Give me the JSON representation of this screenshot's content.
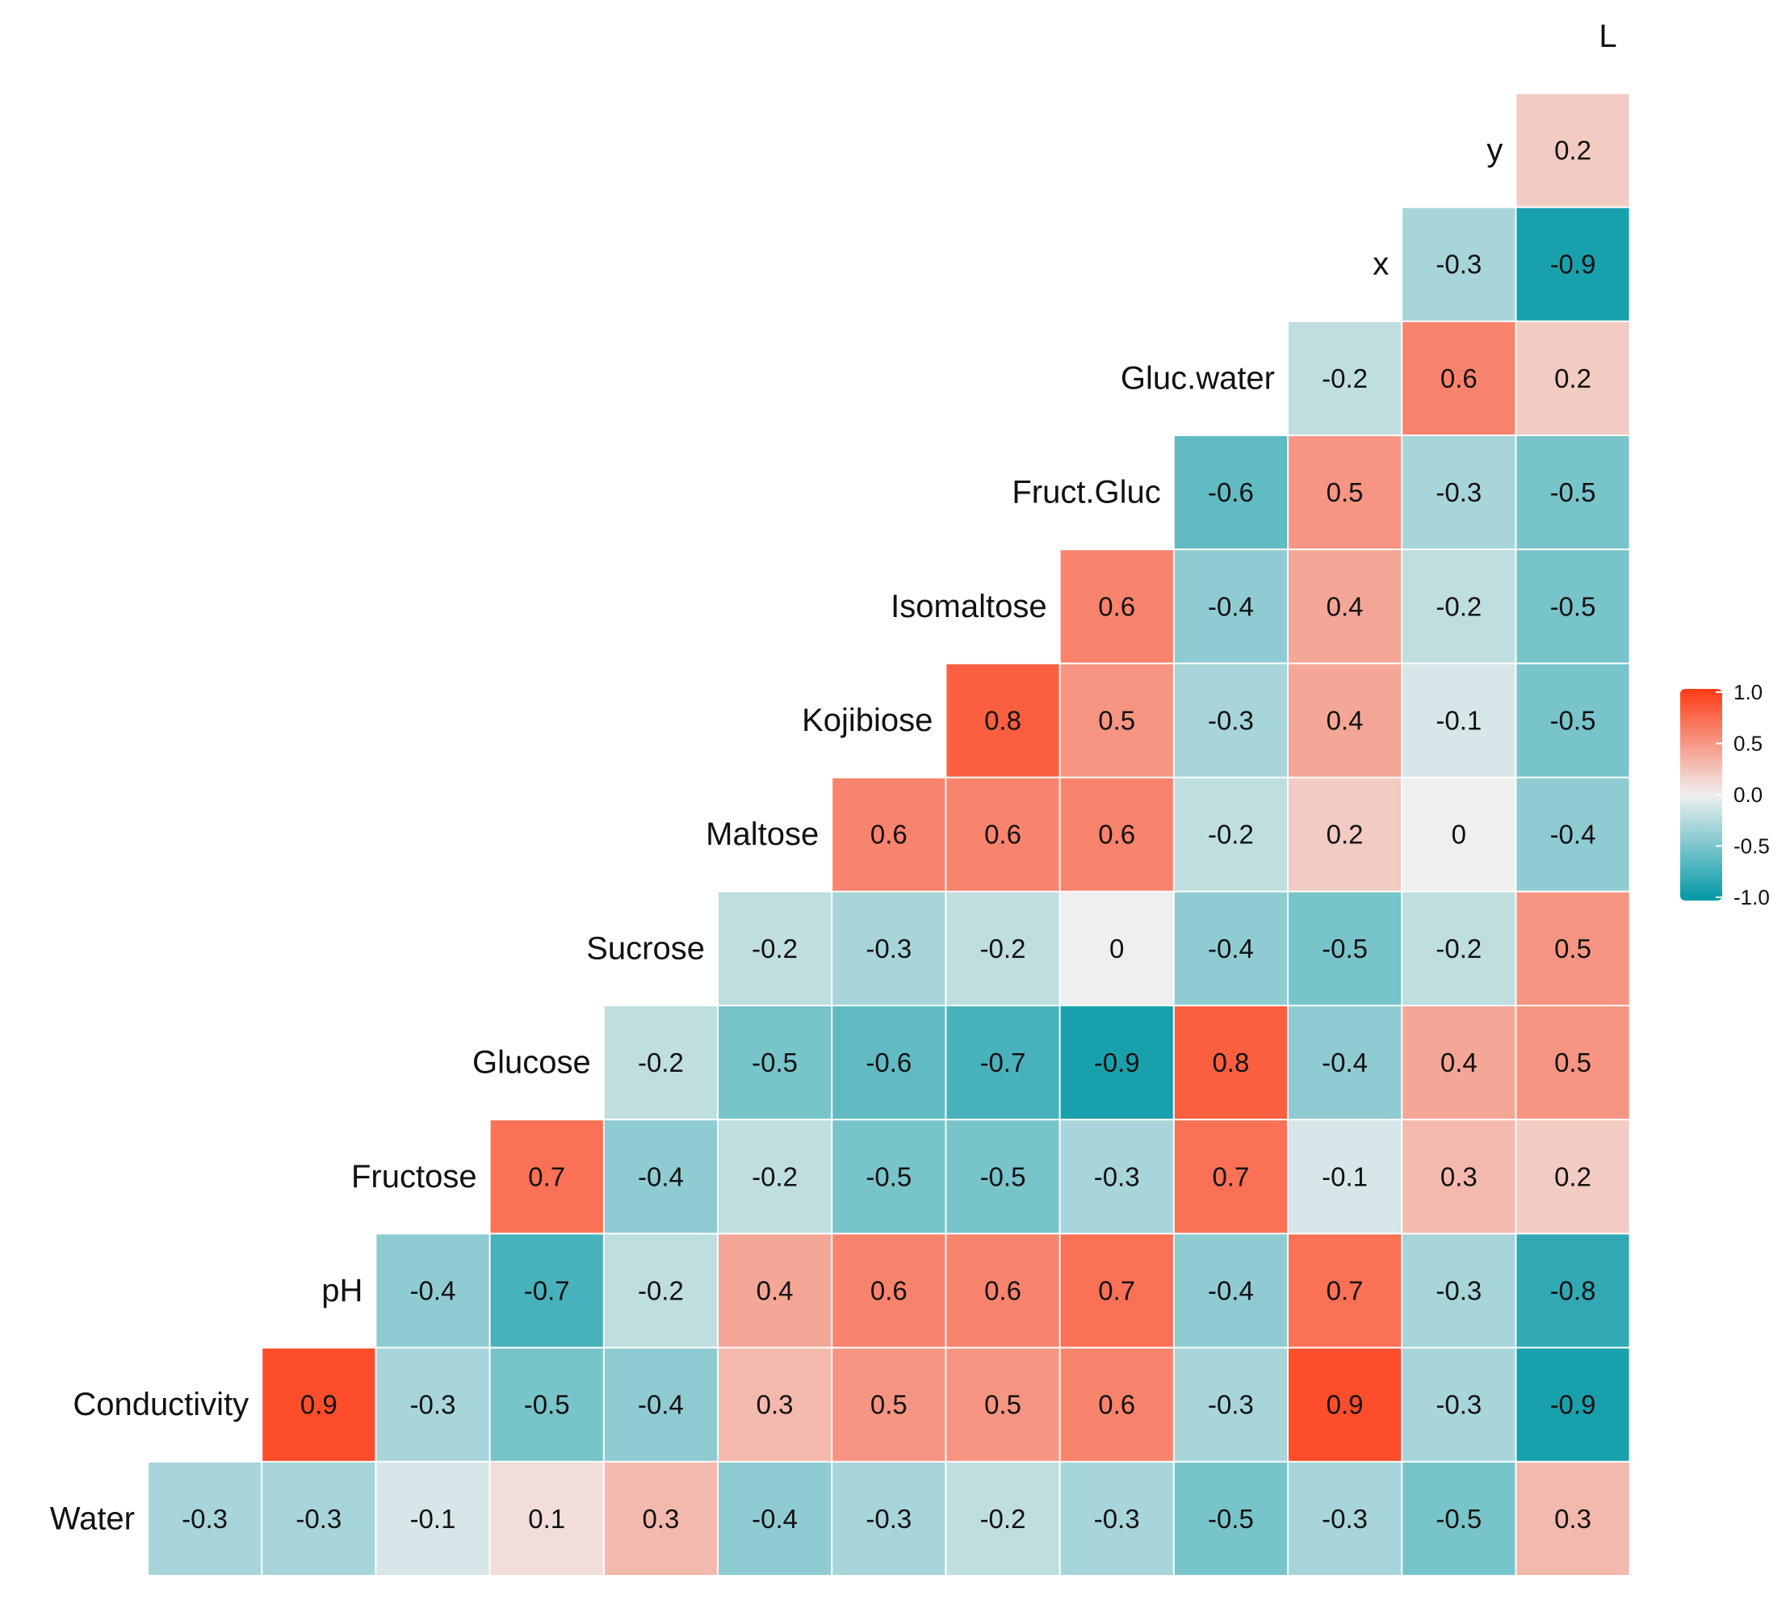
{
  "chart_data": {
    "type": "heatmap",
    "title": "",
    "xlabel": "",
    "ylabel": "",
    "variables": [
      "Water",
      "Conductivity",
      "pH",
      "Fructose",
      "Glucose",
      "Sucrose",
      "Maltose",
      "Kojibiose",
      "Isomaltose",
      "Fruct.Gluc",
      "Gluc.water",
      "x",
      "y",
      "L"
    ],
    "rows": [
      {
        "label": "Water",
        "values": [
          -0.3,
          -0.3,
          -0.1,
          0.1,
          0.3,
          -0.4,
          -0.3,
          -0.2,
          -0.3,
          -0.5,
          -0.3,
          -0.5,
          0.3
        ]
      },
      {
        "label": "Conductivity",
        "values": [
          0.9,
          -0.3,
          -0.5,
          -0.4,
          0.3,
          0.5,
          0.5,
          0.6,
          -0.3,
          0.9,
          -0.3,
          -0.9
        ]
      },
      {
        "label": "pH",
        "values": [
          -0.4,
          -0.7,
          -0.2,
          0.4,
          0.6,
          0.6,
          0.7,
          -0.4,
          0.7,
          -0.3,
          -0.8
        ]
      },
      {
        "label": "Fructose",
        "values": [
          0.7,
          -0.4,
          -0.2,
          -0.5,
          -0.5,
          -0.3,
          0.7,
          -0.1,
          0.3,
          0.2
        ]
      },
      {
        "label": "Glucose",
        "values": [
          -0.2,
          -0.5,
          -0.6,
          -0.7,
          -0.9,
          0.8,
          -0.4,
          0.4,
          0.5
        ]
      },
      {
        "label": "Sucrose",
        "values": [
          -0.2,
          -0.3,
          -0.2,
          0,
          -0.4,
          -0.5,
          -0.2,
          0.5
        ]
      },
      {
        "label": "Maltose",
        "values": [
          0.6,
          0.6,
          0.6,
          -0.2,
          0.2,
          0,
          -0.4
        ]
      },
      {
        "label": "Kojibiose",
        "values": [
          0.8,
          0.5,
          -0.3,
          0.4,
          -0.1,
          -0.5
        ]
      },
      {
        "label": "Isomaltose",
        "values": [
          0.6,
          -0.4,
          0.4,
          -0.2,
          -0.5
        ]
      },
      {
        "label": "Fruct.Gluc",
        "values": [
          -0.6,
          0.5,
          -0.3,
          -0.5
        ]
      },
      {
        "label": "Gluc.water",
        "values": [
          -0.2,
          0.6,
          0.2
        ]
      },
      {
        "label": "x",
        "values": [
          -0.3,
          -0.9
        ]
      },
      {
        "label": "y",
        "values": [
          0.2
        ]
      },
      {
        "label": "L",
        "values": []
      }
    ],
    "color_scale": {
      "min": -1.0,
      "max": 1.0,
      "low_color": "#0098A6",
      "mid_color": "#EFEFEF",
      "high_color": "#FF3B14",
      "ticks": [
        "1.0",
        "0.5",
        "0.0",
        "-0.5",
        "-1.0"
      ],
      "legend_position": "right"
    },
    "grid": false
  }
}
